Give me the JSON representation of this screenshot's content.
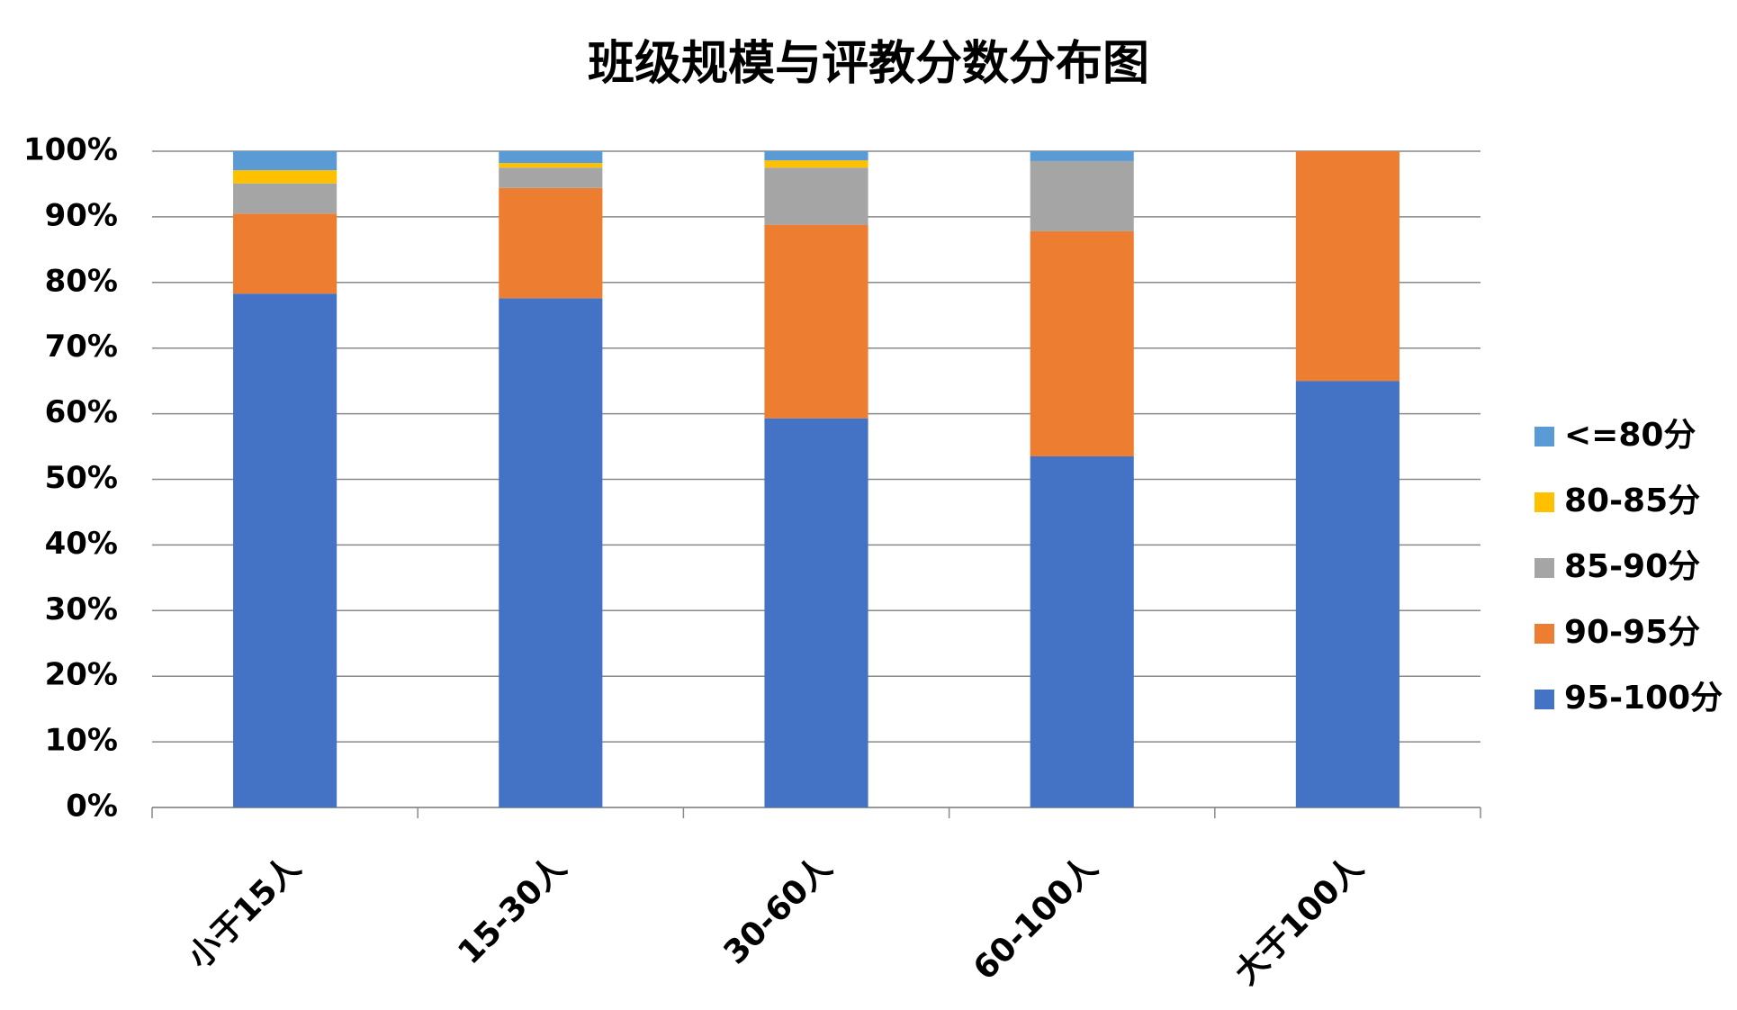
{
  "chart_data": {
    "type": "stacked_bar",
    "title": "班级规模与评教分数分布图",
    "categories": [
      "小于15人",
      "15-30人",
      "30-60人",
      "60-100人",
      "大于100人"
    ],
    "series": [
      {
        "name": "95-100分",
        "color": "#4472c4",
        "values": [
          78.3,
          77.6,
          59.3,
          53.5,
          65.0
        ]
      },
      {
        "name": "90-95分",
        "color": "#ed7d31",
        "values": [
          12.2,
          16.8,
          29.5,
          34.3,
          35.0
        ]
      },
      {
        "name": "85-90分",
        "color": "#a5a5a5",
        "values": [
          4.6,
          3.1,
          8.7,
          10.7,
          0
        ]
      },
      {
        "name": "80-85分",
        "color": "#ffc000",
        "values": [
          2.0,
          0.7,
          1.1,
          0,
          0
        ]
      },
      {
        "name": "<=80分",
        "color": "#5b9bd5",
        "values": [
          2.9,
          1.8,
          1.4,
          1.5,
          0
        ]
      }
    ],
    "ylim": [
      0,
      100
    ],
    "yticks": [
      {
        "value": 0,
        "label": "0%"
      },
      {
        "value": 10,
        "label": "10%"
      },
      {
        "value": 20,
        "label": "20%"
      },
      {
        "value": 30,
        "label": "30%"
      },
      {
        "value": 40,
        "label": "40%"
      },
      {
        "value": 50,
        "label": "50%"
      },
      {
        "value": 60,
        "label": "60%"
      },
      {
        "value": 70,
        "label": "70%"
      },
      {
        "value": 80,
        "label": "80%"
      },
      {
        "value": 90,
        "label": "90%"
      },
      {
        "value": 100,
        "label": "100%"
      }
    ],
    "grid": true,
    "legend": "right"
  }
}
